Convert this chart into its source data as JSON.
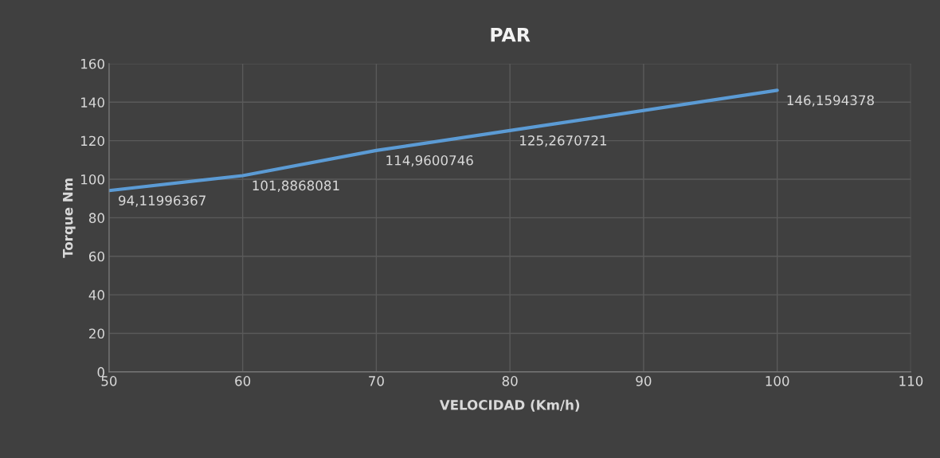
{
  "chart_data": {
    "type": "line",
    "title": "PAR",
    "xlabel": "VELOCIDAD (Km/h)",
    "ylabel": "Torque Nm",
    "x": [
      50,
      60,
      70,
      80,
      100
    ],
    "series": [
      {
        "color": "#5b9bd5",
        "values": [
          94.11996367,
          101.8868081,
          114.9600746,
          125.2670721,
          146.1594378
        ],
        "value_labels": [
          "94,11996367",
          "101,8868081",
          "114,9600746",
          "125,2670721",
          "146,1594378"
        ]
      }
    ],
    "xlim": [
      50,
      110
    ],
    "xticks": [
      50,
      60,
      70,
      80,
      90,
      100,
      110
    ],
    "ylim": [
      0,
      160
    ],
    "yticks": [
      0,
      20,
      40,
      60,
      80,
      100,
      120,
      140,
      160
    ],
    "grid": true,
    "marker": "none",
    "line_style": "solid"
  }
}
